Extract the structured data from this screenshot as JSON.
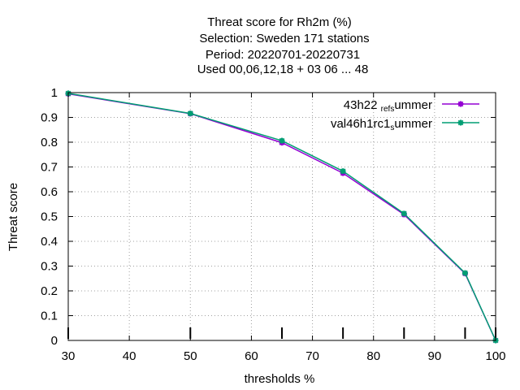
{
  "chart_data": {
    "type": "line",
    "title_lines": [
      "Threat score  for Rh2m (%)",
      "Selection: Sweden    171 stations",
      "Period: 20220701-20220731",
      "Used  00,06,12,18  + 03 06 ... 48"
    ],
    "xlabel": "thresholds %",
    "ylabel": "Threat score",
    "xlim": [
      30,
      100
    ],
    "ylim": [
      0,
      1
    ],
    "xticks": [
      30,
      40,
      50,
      60,
      70,
      80,
      90,
      100
    ],
    "yticks": [
      0,
      0.1,
      0.2,
      0.3,
      0.4,
      0.5,
      0.6,
      0.7,
      0.8,
      0.9,
      1
    ],
    "grid": true,
    "legend_position": "top-right",
    "threshold_markers": [
      30,
      50,
      65,
      75,
      85,
      95,
      100
    ],
    "series": [
      {
        "name_parts": [
          "43h22",
          "ref",
          "s",
          "ummer"
        ],
        "color": "#9400d3",
        "x": [
          30,
          50,
          65,
          75,
          85,
          95,
          100
        ],
        "y": [
          0.995,
          0.915,
          0.798,
          0.675,
          0.508,
          0.27,
          0.0
        ]
      },
      {
        "name_parts": [
          "val46h1rc1",
          "",
          "s",
          "ummer"
        ],
        "color": "#009e73",
        "x": [
          30,
          50,
          65,
          75,
          85,
          95,
          100
        ],
        "y": [
          0.997,
          0.916,
          0.806,
          0.683,
          0.512,
          0.272,
          0.0
        ]
      }
    ]
  }
}
